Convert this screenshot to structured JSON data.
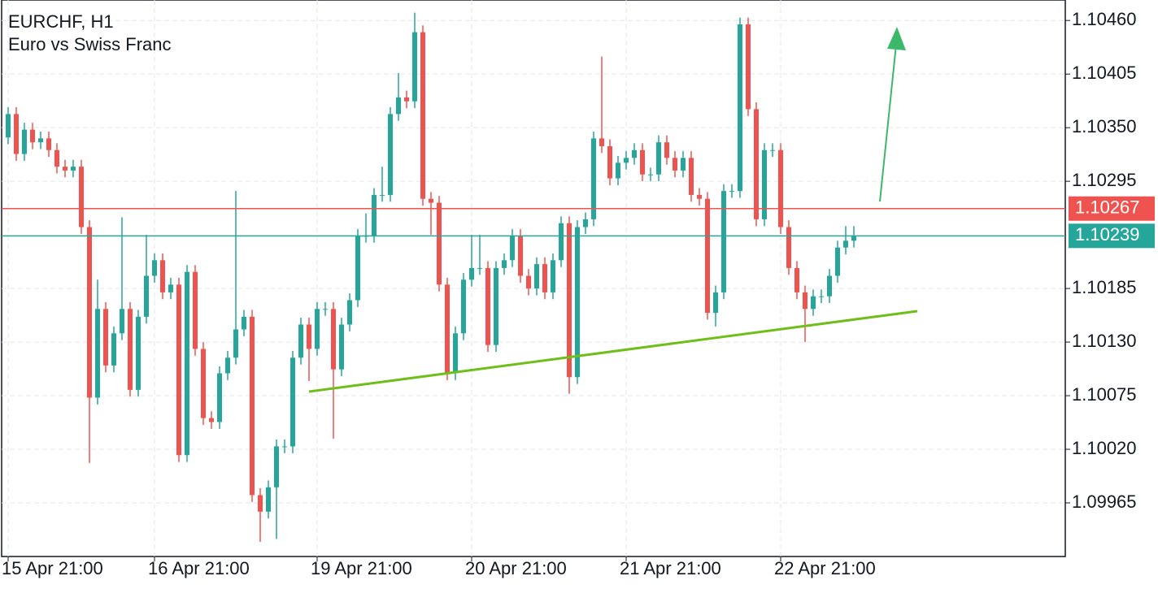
{
  "chart_data": {
    "type": "candlestick",
    "title": "EURCHF, H1",
    "subtitle": "Euro vs Swiss Franc",
    "up_color": "#26a69a",
    "down_color": "#ef5350",
    "grid": true,
    "ylim": [
      1.0991,
      1.10481
    ],
    "yticks": [
      {
        "value": 1.1046,
        "label": "1.10460"
      },
      1.10405,
      {
        "value": 1.1035,
        "label": "1.10350"
      },
      1.10295,
      1.10185,
      {
        "value": 1.1013,
        "label": "1.10130"
      },
      1.10075,
      {
        "value": 1.1002,
        "label": "1.10020"
      },
      1.09965
    ],
    "categories": [
      "15 Apr 21:00",
      null,
      null,
      null,
      null,
      null,
      null,
      null,
      null,
      null,
      null,
      null,
      null,
      null,
      null,
      null,
      null,
      null,
      "16 Apr 21:00",
      null,
      null,
      null,
      null,
      null,
      null,
      null,
      null,
      null,
      null,
      null,
      null,
      null,
      null,
      null,
      null,
      null,
      null,
      null,
      "19 Apr 21:00",
      null,
      null,
      null,
      null,
      null,
      null,
      null,
      null,
      null,
      null,
      null,
      null,
      null,
      null,
      null,
      null,
      null,
      null,
      "20 Apr 21:00",
      null,
      null,
      null,
      null,
      null,
      null,
      null,
      null,
      null,
      null,
      null,
      null,
      null,
      null,
      null,
      null,
      null,
      null,
      "21 Apr 21:00",
      null,
      null,
      null,
      null,
      null,
      null,
      null,
      null,
      null,
      null,
      null,
      null,
      null,
      null,
      null,
      null,
      null,
      null,
      "22 Apr 21:00",
      null,
      null,
      null,
      null,
      null,
      null,
      null,
      null,
      null
    ],
    "open": [
      1.1034,
      1.10364,
      1.10323,
      1.10348,
      1.10335,
      1.10339,
      1.10327,
      1.1031,
      1.10306,
      1.1031,
      1.10248,
      1.10073,
      1.10164,
      1.10106,
      1.10139,
      1.10164,
      1.10081,
      1.10156,
      1.10198,
      1.10214,
      1.10181,
      1.10189,
      1.10014,
      1.10202,
      1.10123,
      1.10052,
      1.10048,
      1.10098,
      1.10114,
      1.10143,
      1.10156,
      1.09973,
      1.09956,
      1.09981,
      1.10023,
      1.10023,
      1.10114,
      1.10148,
      1.10123,
      1.10164,
      1.10164,
      1.10102,
      1.10148,
      1.10173,
      1.10239,
      1.10239,
      1.10281,
      1.10281,
      1.10364,
      1.10381,
      1.10377,
      1.10448,
      1.10277,
      1.10273,
      1.10189,
      1.10098,
      1.10139,
      1.10194,
      1.10206,
      1.10206,
      1.10127,
      1.10206,
      1.10214,
      1.10239,
      1.10198,
      1.10185,
      1.1021,
      1.10181,
      1.10214,
      1.10252,
      1.10094,
      1.10248,
      1.10256,
      1.10339,
      1.10331,
      1.10298,
      1.10314,
      1.10319,
      1.10327,
      1.10302,
      1.10302,
      1.10335,
      1.10319,
      1.10306,
      1.10319,
      1.10281,
      1.10277,
      1.1016,
      1.10181,
      1.10285,
      1.10285,
      1.10456,
      1.10369,
      1.10256,
      1.10327,
      1.10327,
      1.10248,
      1.10206,
      1.10181,
      1.10164,
      1.10177,
      1.10177,
      1.10198,
      1.10227,
      1.10234
    ],
    "high": [
      1.10371,
      1.10371,
      1.10355,
      1.10355,
      1.10346,
      1.10346,
      1.10334,
      1.10317,
      1.10317,
      1.10317,
      1.10255,
      1.10194,
      1.10171,
      1.10146,
      1.10258,
      1.10171,
      1.10163,
      1.1024,
      1.10221,
      1.10221,
      1.10196,
      1.10196,
      1.10209,
      1.10209,
      1.1013,
      1.10059,
      1.10105,
      1.10121,
      1.10285,
      1.10163,
      1.10163,
      1.0998,
      1.09988,
      1.1003,
      1.1003,
      1.10121,
      1.10155,
      1.10155,
      1.10171,
      1.10171,
      1.10171,
      1.10155,
      1.1018,
      1.10246,
      1.10262,
      1.10288,
      1.1031,
      1.10371,
      1.10406,
      1.10388,
      1.10468,
      1.10455,
      1.10284,
      1.1028,
      1.10196,
      1.10146,
      1.10201,
      1.1024,
      1.1024,
      1.10213,
      1.10213,
      1.10221,
      1.10246,
      1.10246,
      1.10205,
      1.10217,
      1.10217,
      1.10221,
      1.10259,
      1.10259,
      1.10255,
      1.10263,
      1.10346,
      1.10423,
      1.10338,
      1.10321,
      1.10326,
      1.10334,
      1.10334,
      1.10309,
      1.10342,
      1.10342,
      1.10326,
      1.10326,
      1.10326,
      1.10288,
      1.10284,
      1.10188,
      1.10292,
      1.10292,
      1.10463,
      1.10463,
      1.10376,
      1.10334,
      1.10334,
      1.10334,
      1.10255,
      1.10213,
      1.10188,
      1.10184,
      1.10184,
      1.10205,
      1.10234,
      1.10249,
      1.10249
    ],
    "low": [
      1.10333,
      1.10316,
      1.10316,
      1.10328,
      1.10328,
      1.1032,
      1.10303,
      1.10299,
      1.10299,
      1.10241,
      1.10006,
      1.10066,
      1.10099,
      1.10099,
      1.10132,
      1.10074,
      1.10074,
      1.10149,
      1.10191,
      1.10174,
      1.10174,
      1.10007,
      1.10007,
      1.10116,
      1.10045,
      1.10041,
      1.10041,
      1.10091,
      1.10107,
      1.10136,
      1.09966,
      1.09925,
      1.09949,
      1.09928,
      1.10016,
      1.10016,
      1.10107,
      1.1009,
      1.10116,
      1.10157,
      1.10031,
      1.10095,
      1.10141,
      1.10166,
      1.10232,
      1.10232,
      1.10274,
      1.10274,
      1.10357,
      1.1037,
      1.1037,
      1.1027,
      1.1024,
      1.10182,
      1.10091,
      1.10091,
      1.10132,
      1.10187,
      1.10199,
      1.1012,
      1.1012,
      1.10199,
      1.10207,
      1.10191,
      1.10178,
      1.10178,
      1.10174,
      1.10174,
      1.10207,
      1.10077,
      1.10087,
      1.10241,
      1.10249,
      1.10324,
      1.10291,
      1.10291,
      1.10307,
      1.10312,
      1.10295,
      1.10295,
      1.10295,
      1.10312,
      1.10299,
      1.10299,
      1.10274,
      1.1027,
      1.10153,
      1.10146,
      1.10174,
      1.10278,
      1.10278,
      1.10362,
      1.10249,
      1.10249,
      1.1032,
      1.10241,
      1.10199,
      1.10174,
      1.1013,
      1.10157,
      1.1017,
      1.1017,
      1.10191,
      1.1022,
      1.10227
    ],
    "close": [
      1.10364,
      1.10323,
      1.10348,
      1.10335,
      1.10339,
      1.10327,
      1.1031,
      1.10306,
      1.1031,
      1.10248,
      1.10073,
      1.10164,
      1.10106,
      1.10139,
      1.10164,
      1.10081,
      1.10156,
      1.10198,
      1.10214,
      1.10181,
      1.10189,
      1.10014,
      1.10202,
      1.10123,
      1.10052,
      1.10048,
      1.10098,
      1.10114,
      1.10143,
      1.10156,
      1.09973,
      1.09956,
      1.09981,
      1.10023,
      1.10023,
      1.10114,
      1.10148,
      1.10123,
      1.10164,
      1.10164,
      1.10102,
      1.10148,
      1.10173,
      1.10239,
      1.10239,
      1.10281,
      1.10281,
      1.10364,
      1.10381,
      1.10377,
      1.10448,
      1.10277,
      1.10273,
      1.10189,
      1.10098,
      1.10139,
      1.10194,
      1.10206,
      1.10206,
      1.10127,
      1.10206,
      1.10214,
      1.10239,
      1.10198,
      1.10185,
      1.1021,
      1.10181,
      1.10214,
      1.10252,
      1.10094,
      1.10248,
      1.10256,
      1.10339,
      1.10331,
      1.10298,
      1.10314,
      1.10319,
      1.10327,
      1.10302,
      1.10302,
      1.10335,
      1.10319,
      1.10306,
      1.10319,
      1.10281,
      1.10277,
      1.1016,
      1.10181,
      1.10285,
      1.10285,
      1.10456,
      1.10369,
      1.10256,
      1.10327,
      1.10327,
      1.10248,
      1.10206,
      1.10181,
      1.10164,
      1.10177,
      1.10177,
      1.10198,
      1.10227,
      1.10234,
      1.10239
    ],
    "price_lines": [
      {
        "value": 1.10267,
        "color": "#ef5350"
      },
      {
        "value": 1.10239,
        "color": "#26a69a"
      }
    ]
  }
}
